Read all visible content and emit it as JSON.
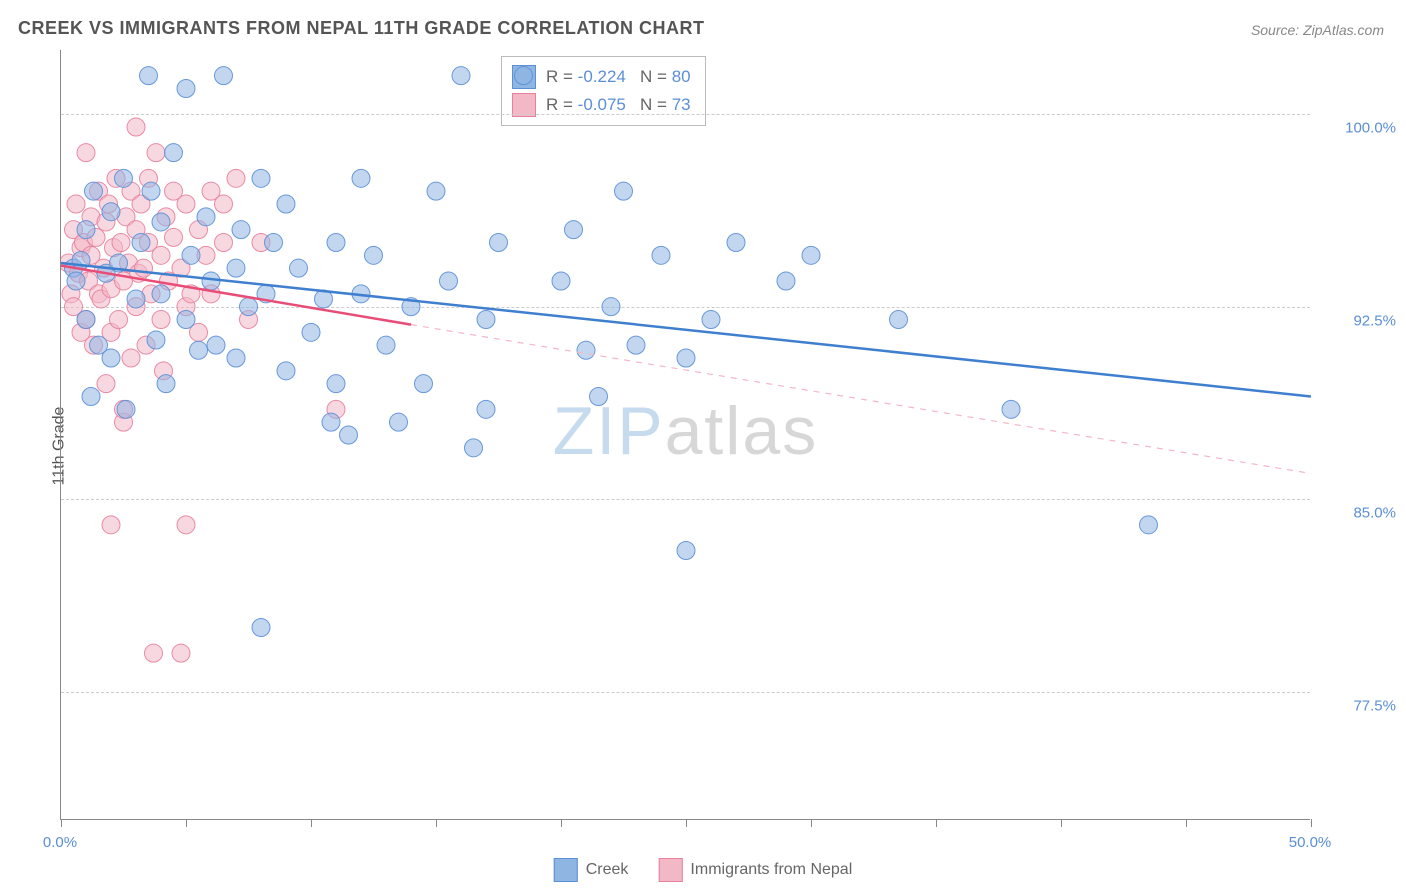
{
  "title": "CREEK VS IMMIGRANTS FROM NEPAL 11TH GRADE CORRELATION CHART",
  "source": "Source: ZipAtlas.com",
  "ylabel": "11th Grade",
  "watermark": {
    "part1": "ZIP",
    "part2": "atlas",
    "color1": "#c7dbef",
    "color2": "#d7d7d7"
  },
  "chart": {
    "type": "scatter",
    "background_color": "#ffffff",
    "grid_color": "#cccccc",
    "xlim": [
      0,
      50
    ],
    "ylim": [
      72.5,
      102.5
    ],
    "yticks": [
      77.5,
      85.0,
      92.5,
      100.0
    ],
    "ytick_labels": [
      "77.5%",
      "85.0%",
      "92.5%",
      "100.0%"
    ],
    "xticks": [
      0,
      5,
      10,
      15,
      20,
      25,
      30,
      35,
      40,
      45,
      50
    ],
    "xaxis_labels": {
      "min": "0.0%",
      "max": "50.0%"
    },
    "marker_radius": 9,
    "marker_opacity": 0.55,
    "marker_stroke_opacity": 0.9,
    "series": [
      {
        "name": "Creek",
        "color": "#8fb5e3",
        "stroke": "#5b8fd6",
        "R": "-0.224",
        "N": "80",
        "regression": {
          "x1": 0,
          "y1": 94.2,
          "x2": 50,
          "y2": 89.0,
          "color": "#3f7fcf",
          "width": 2.5,
          "dash": "solid"
        },
        "points": [
          [
            0.5,
            94.0
          ],
          [
            0.6,
            93.5
          ],
          [
            0.8,
            94.3
          ],
          [
            1.0,
            92.0
          ],
          [
            1.0,
            95.5
          ],
          [
            1.2,
            89.0
          ],
          [
            1.3,
            97.0
          ],
          [
            1.5,
            91.0
          ],
          [
            1.8,
            93.8
          ],
          [
            2.0,
            96.2
          ],
          [
            2.0,
            90.5
          ],
          [
            2.3,
            94.2
          ],
          [
            2.5,
            97.5
          ],
          [
            2.6,
            88.5
          ],
          [
            3.0,
            92.8
          ],
          [
            3.2,
            95.0
          ],
          [
            3.5,
            101.5
          ],
          [
            3.6,
            97.0
          ],
          [
            3.8,
            91.2
          ],
          [
            4.0,
            93.0
          ],
          [
            4.0,
            95.8
          ],
          [
            4.2,
            89.5
          ],
          [
            4.5,
            98.5
          ],
          [
            5.0,
            92.0
          ],
          [
            5.0,
            101.0
          ],
          [
            5.2,
            94.5
          ],
          [
            5.5,
            90.8
          ],
          [
            5.8,
            96.0
          ],
          [
            6.0,
            93.5
          ],
          [
            6.2,
            91.0
          ],
          [
            6.5,
            101.5
          ],
          [
            7.0,
            94.0
          ],
          [
            7.0,
            90.5
          ],
          [
            7.2,
            95.5
          ],
          [
            7.5,
            92.5
          ],
          [
            8.0,
            97.5
          ],
          [
            8.0,
            80.0
          ],
          [
            8.2,
            93.0
          ],
          [
            8.5,
            95.0
          ],
          [
            9.0,
            90.0
          ],
          [
            9.0,
            96.5
          ],
          [
            9.5,
            94.0
          ],
          [
            10.0,
            91.5
          ],
          [
            10.5,
            92.8
          ],
          [
            10.8,
            88.0
          ],
          [
            11.0,
            89.5
          ],
          [
            11.0,
            95.0
          ],
          [
            11.5,
            87.5
          ],
          [
            12.0,
            93.0
          ],
          [
            12.0,
            97.5
          ],
          [
            12.5,
            94.5
          ],
          [
            13.0,
            91.0
          ],
          [
            13.5,
            88.0
          ],
          [
            14.0,
            92.5
          ],
          [
            14.5,
            89.5
          ],
          [
            15.0,
            97.0
          ],
          [
            15.5,
            93.5
          ],
          [
            16.0,
            101.5
          ],
          [
            16.5,
            87.0
          ],
          [
            17.0,
            92.0
          ],
          [
            17.0,
            88.5
          ],
          [
            17.5,
            95.0
          ],
          [
            18.5,
            101.5
          ],
          [
            20.0,
            93.5
          ],
          [
            20.5,
            95.5
          ],
          [
            21.0,
            90.8
          ],
          [
            21.5,
            89.0
          ],
          [
            22.0,
            92.5
          ],
          [
            22.5,
            97.0
          ],
          [
            23.0,
            91.0
          ],
          [
            24.0,
            94.5
          ],
          [
            25.0,
            83.0
          ],
          [
            25.0,
            90.5
          ],
          [
            26.0,
            92.0
          ],
          [
            27.0,
            95.0
          ],
          [
            29.0,
            93.5
          ],
          [
            30.0,
            94.5
          ],
          [
            33.5,
            92.0
          ],
          [
            38.0,
            88.5
          ],
          [
            43.5,
            84.0
          ]
        ]
      },
      {
        "name": "Immigrants from Nepal",
        "color": "#f2b8c6",
        "stroke": "#e87f9c",
        "R": "-0.075",
        "N": "73",
        "regression_solid": {
          "x1": 0,
          "y1": 94.1,
          "x2": 14,
          "y2": 91.8,
          "color": "#e84d77",
          "width": 2.5
        },
        "regression_dash": {
          "x1": 14,
          "y1": 91.8,
          "x2": 50,
          "y2": 86.0,
          "color": "#f2b8c6",
          "width": 1.2
        },
        "points": [
          [
            0.3,
            94.2
          ],
          [
            0.4,
            93.0
          ],
          [
            0.5,
            95.5
          ],
          [
            0.5,
            92.5
          ],
          [
            0.6,
            96.5
          ],
          [
            0.7,
            93.8
          ],
          [
            0.8,
            91.5
          ],
          [
            0.8,
            94.8
          ],
          [
            0.9,
            95.0
          ],
          [
            1.0,
            92.0
          ],
          [
            1.0,
            98.5
          ],
          [
            1.1,
            93.5
          ],
          [
            1.2,
            96.0
          ],
          [
            1.2,
            94.5
          ],
          [
            1.3,
            91.0
          ],
          [
            1.4,
            95.2
          ],
          [
            1.5,
            93.0
          ],
          [
            1.5,
            97.0
          ],
          [
            1.6,
            92.8
          ],
          [
            1.7,
            94.0
          ],
          [
            1.8,
            95.8
          ],
          [
            1.8,
            89.5
          ],
          [
            1.9,
            96.5
          ],
          [
            2.0,
            93.2
          ],
          [
            2.0,
            91.5
          ],
          [
            2.1,
            94.8
          ],
          [
            2.2,
            97.5
          ],
          [
            2.3,
            92.0
          ],
          [
            2.4,
            95.0
          ],
          [
            2.5,
            93.5
          ],
          [
            2.5,
            88.0
          ],
          [
            2.6,
            96.0
          ],
          [
            2.7,
            94.2
          ],
          [
            2.8,
            97.0
          ],
          [
            2.8,
            90.5
          ],
          [
            3.0,
            95.5
          ],
          [
            3.0,
            92.5
          ],
          [
            3.0,
            99.5
          ],
          [
            3.1,
            93.8
          ],
          [
            3.2,
            96.5
          ],
          [
            3.3,
            94.0
          ],
          [
            3.4,
            91.0
          ],
          [
            3.5,
            97.5
          ],
          [
            3.5,
            95.0
          ],
          [
            3.6,
            93.0
          ],
          [
            3.8,
            98.5
          ],
          [
            4.0,
            94.5
          ],
          [
            4.0,
            92.0
          ],
          [
            4.1,
            90.0
          ],
          [
            4.2,
            96.0
          ],
          [
            4.3,
            93.5
          ],
          [
            4.5,
            95.2
          ],
          [
            4.5,
            97.0
          ],
          [
            4.8,
            94.0
          ],
          [
            5.0,
            92.5
          ],
          [
            5.0,
            96.5
          ],
          [
            5.0,
            84.0
          ],
          [
            5.2,
            93.0
          ],
          [
            5.5,
            95.5
          ],
          [
            5.5,
            91.5
          ],
          [
            5.8,
            94.5
          ],
          [
            6.0,
            97.0
          ],
          [
            6.0,
            93.0
          ],
          [
            6.5,
            95.0
          ],
          [
            6.5,
            96.5
          ],
          [
            7.0,
            97.5
          ],
          [
            7.5,
            92.0
          ],
          [
            8.0,
            95.0
          ],
          [
            3.7,
            79.0
          ],
          [
            4.8,
            79.0
          ],
          [
            2.5,
            88.5
          ],
          [
            2.0,
            84.0
          ],
          [
            11.0,
            88.5
          ]
        ]
      }
    ]
  },
  "statbox_labels": {
    "R": "R =",
    "N": "N ="
  },
  "legend": {
    "items": [
      {
        "label": "Creek",
        "fill": "#8fb5e3",
        "stroke": "#5b8fd6"
      },
      {
        "label": "Immigrants from Nepal",
        "fill": "#f2b8c6",
        "stroke": "#e87f9c"
      }
    ]
  }
}
